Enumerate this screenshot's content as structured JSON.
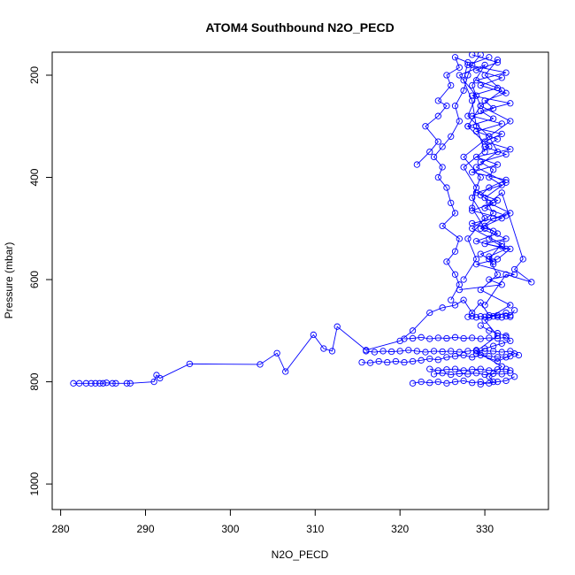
{
  "chart_data": {
    "type": "line",
    "title": "ATOM4 Southbound N2O_PECD",
    "xlabel": "N2O_PECD",
    "ylabel": "Pressure (mbar)",
    "xlim": [
      279,
      337.5
    ],
    "ylim": [
      1050,
      155
    ],
    "y_axis_inverted": true,
    "x_ticks": [
      280,
      290,
      300,
      310,
      320,
      330
    ],
    "y_ticks": [
      200,
      400,
      600,
      800,
      1000
    ],
    "grid": false,
    "legend": "none",
    "marker": "open-circle",
    "color": "#0000ff",
    "series": [
      {
        "x": [
          281.5,
          282.2,
          283.0,
          283.6,
          284.1,
          284.6,
          285.0,
          285.4,
          286.1,
          286.5,
          287.8,
          288.2,
          291.0,
          291.3,
          291.7,
          295.2,
          303.5,
          305.5,
          306.5,
          309.8,
          311.0,
          312.0,
          312.6,
          316.0,
          320.0,
          321.5,
          323.5,
          325.0,
          326.5,
          327.5,
          328.5,
          329.5,
          330.5,
          331.5,
          332.5,
          333.0,
          333.5
        ],
        "y": [
          803,
          803,
          803,
          803,
          803,
          803,
          803,
          802,
          803,
          803,
          803,
          803,
          800,
          787,
          793,
          765,
          766,
          744,
          780,
          708,
          735,
          740,
          692,
          738,
          720,
          700,
          665,
          655,
          650,
          640,
          665,
          645,
          670,
          670,
          665,
          670,
          660
        ]
      },
      {
        "x": [
          315.5,
          316.5,
          317.5,
          318.5,
          319.5,
          320.5,
          321.5,
          322.5,
          323.5,
          324.5,
          325.5,
          326.5,
          327.5,
          328.5,
          329.5,
          330.5,
          331.5,
          332.5,
          333.0
        ],
        "y": [
          762,
          763,
          760,
          762,
          760,
          762,
          760,
          758,
          755,
          757,
          752,
          750,
          748,
          752,
          748,
          750,
          752,
          752,
          750
        ]
      },
      {
        "x": [
          316.0,
          317.0,
          318.0,
          319.0,
          320.0,
          321.0,
          322.0,
          323.0,
          324.0,
          325.0,
          326.0,
          327.0,
          328.0,
          329.0,
          330.0,
          331.0,
          332.0,
          333.0,
          334.0
        ],
        "y": [
          740,
          742,
          740,
          741,
          740,
          738,
          740,
          742,
          740,
          741,
          740,
          742,
          740,
          738,
          740,
          740,
          742,
          740,
          748
        ]
      },
      {
        "x": [
          320.5,
          321.5,
          322.5,
          323.5,
          324.5,
          325.5,
          326.5,
          327.5,
          328.5,
          329.5,
          330.5,
          331.5,
          332.5
        ],
        "y": [
          716,
          715,
          713,
          716,
          714,
          715,
          713,
          715,
          714,
          716,
          714,
          715,
          713
        ]
      },
      {
        "x": [
          321.5,
          322.5,
          323.5,
          324.5,
          325.5,
          326.5,
          327.5,
          328.5,
          329.5,
          330.5,
          331.5,
          332.5,
          333.5
        ],
        "y": [
          803,
          800,
          802,
          800,
          803,
          800,
          798,
          802,
          800,
          803,
          800,
          798,
          790
        ]
      },
      {
        "x": [
          323.5,
          324.5,
          325.5,
          326.5,
          327.5,
          328.5,
          329.5,
          330.5,
          331.5,
          332.5,
          333.0
        ],
        "y": [
          775,
          778,
          776,
          775,
          778,
          776,
          775,
          778,
          776,
          775,
          778
        ]
      },
      {
        "x": [
          327.0,
          332.0,
          330.5,
          333.5,
          329.0,
          331.5,
          333.0,
          330.0,
          332.5,
          329.5,
          331.0,
          333.0,
          330.5,
          332.0,
          334.5,
          333.5,
          335.5,
          332.5,
          330.0
        ],
        "y": [
          620,
          610,
          600,
          590,
          570,
          560,
          540,
          530,
          520,
          500,
          480,
          470,
          450,
          430,
          560,
          580,
          605,
          590,
          650
        ]
      },
      {
        "x": [
          326.0,
          327.0,
          326.5,
          325.5,
          326.5,
          327.0,
          325.0,
          326.5,
          326.0,
          325.5,
          324.5,
          325.0,
          324.0,
          325.0,
          326.0,
          327.0,
          326.5,
          327.5,
          328.0,
          328.5,
          329.5
        ],
        "y": [
          640,
          610,
          590,
          565,
          545,
          520,
          495,
          470,
          450,
          420,
          400,
          380,
          360,
          340,
          320,
          290,
          260,
          230,
          200,
          180,
          160
        ]
      },
      {
        "x": [
          322.0,
          323.5,
          324.5,
          323.0,
          324.5,
          325.5,
          324.5,
          326.0,
          325.5,
          327.0,
          326.5,
          328.0,
          327.5,
          328.5,
          329.0,
          330.0
        ],
        "y": [
          375,
          350,
          330,
          300,
          280,
          260,
          250,
          220,
          200,
          185,
          165,
          175,
          210,
          250,
          300,
          350
        ]
      },
      {
        "x": [
          328.5,
          331.5,
          329.0,
          332.0,
          329.5,
          332.5,
          330.0,
          331.0,
          328.5,
          332.0,
          329.0,
          331.5,
          330.0,
          332.5,
          329.5,
          331.0,
          330.5,
          332.0,
          329.0,
          331.5,
          330.0,
          332.5,
          328.5,
          331.0,
          330.5,
          332.0,
          329.5,
          331.0
        ],
        "y": [
          160,
          175,
          190,
          205,
          220,
          235,
          250,
          265,
          280,
          295,
          310,
          325,
          340,
          355,
          370,
          385,
          400,
          415,
          430,
          445,
          460,
          475,
          490,
          505,
          520,
          535,
          550,
          565
        ]
      },
      {
        "x": [
          330.5,
          328.0,
          332.5,
          329.0,
          331.5,
          328.5,
          333.0,
          329.5,
          331.0,
          328.0,
          332.0,
          330.0,
          333.0,
          329.0,
          331.5,
          328.5,
          332.5,
          330.5,
          329.5,
          331.0,
          328.5,
          332.0,
          330.0,
          331.5,
          329.0,
          332.5,
          330.5,
          331.0
        ],
        "y": [
          165,
          180,
          195,
          210,
          225,
          240,
          255,
          270,
          285,
          300,
          315,
          330,
          345,
          360,
          375,
          390,
          405,
          420,
          435,
          450,
          465,
          480,
          495,
          510,
          525,
          540,
          555,
          570
        ]
      },
      {
        "x": [
          331.5,
          330.0,
          332.0,
          329.5,
          333.0,
          330.5,
          331.5,
          329.0,
          332.5,
          330.0,
          331.0,
          328.5,
          332.0,
          330.5,
          331.5,
          329.5,
          333.0,
          330.0,
          331.5,
          329.0,
          332.0,
          330.5,
          331.0,
          329.5
        ],
        "y": [
          170,
          200,
          230,
          260,
          290,
          320,
          350,
          380,
          410,
          440,
          470,
          500,
          530,
          560,
          590,
          620,
          650,
          680,
          710,
          740,
          770,
          790,
          800,
          805
        ]
      },
      {
        "x": [
          327.5,
          329.0,
          328.0,
          330.0,
          328.5,
          329.5,
          327.5,
          330.5,
          328.0,
          329.0,
          327.0,
          330.0,
          328.5,
          329.5,
          328.0,
          330.5,
          327.5,
          329.0,
          328.5,
          330.0
        ],
        "y": [
          600,
          560,
          520,
          480,
          440,
          400,
          360,
          320,
          280,
          240,
          200,
          180,
          220,
          260,
          300,
          340,
          380,
          420,
          460,
          500
        ]
      },
      {
        "x": [
          328.0,
          328.5,
          329.0,
          329.5,
          330.0,
          330.5,
          331.0,
          331.5,
          332.0,
          332.5,
          333.0
        ],
        "y": [
          673,
          672,
          674,
          672,
          673,
          674,
          672,
          673,
          674,
          672,
          673
        ]
      },
      {
        "x": [
          329.5,
          330.5,
          331.5,
          332.5,
          333.0,
          332.0,
          331.0,
          330.0,
          329.0,
          331.5,
          333.5
        ],
        "y": [
          690,
          700,
          705,
          710,
          720,
          725,
          730,
          735,
          745,
          760,
          745
        ]
      },
      {
        "x": [
          324.0,
          325.0,
          326.0,
          327.0,
          328.0,
          329.0,
          330.0,
          331.0,
          332.0,
          333.0
        ],
        "y": [
          785,
          783,
          786,
          784,
          785,
          783,
          786,
          784,
          785,
          783
        ]
      }
    ]
  }
}
